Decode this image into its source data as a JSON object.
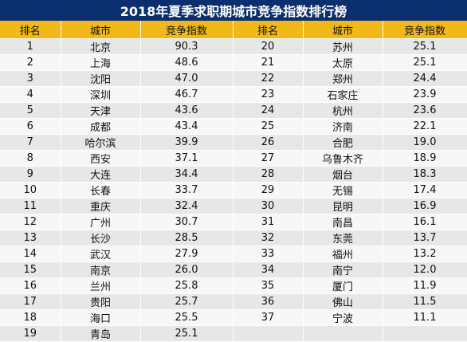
{
  "title": "2018年夏季求职期城市竞争指数排行榜",
  "headers": [
    "排名",
    "城市",
    "竞争指数",
    "排名",
    "城市",
    "竞争指数"
  ],
  "rows": [
    [
      "1",
      "北京",
      "90.3",
      "20",
      "苏州",
      "25.1"
    ],
    [
      "2",
      "上海",
      "48.6",
      "21",
      "太原",
      "25.1"
    ],
    [
      "3",
      "沈阳",
      "47.0",
      "22",
      "郑州",
      "24.4"
    ],
    [
      "4",
      "深圳",
      "46.7",
      "23",
      "石家庄",
      "23.9"
    ],
    [
      "5",
      "天津",
      "43.6",
      "24",
      "杭州",
      "23.6"
    ],
    [
      "6",
      "成都",
      "43.4",
      "25",
      "济南",
      "22.1"
    ],
    [
      "7",
      "哈尔滨",
      "39.9",
      "26",
      "合肥",
      "19.0"
    ],
    [
      "8",
      "西安",
      "37.1",
      "27",
      "乌鲁木齐",
      "18.9"
    ],
    [
      "9",
      "大连",
      "34.4",
      "28",
      "烟台",
      "18.3"
    ],
    [
      "10",
      "长春",
      "33.7",
      "29",
      "无锡",
      "17.4"
    ],
    [
      "11",
      "重庆",
      "32.4",
      "30",
      "昆明",
      "16.9"
    ],
    [
      "12",
      "广州",
      "30.7",
      "31",
      "南昌",
      "16.1"
    ],
    [
      "13",
      "长沙",
      "28.5",
      "32",
      "东莞",
      "13.7"
    ],
    [
      "14",
      "武汉",
      "27.9",
      "33",
      "福州",
      "13.2"
    ],
    [
      "15",
      "南京",
      "26.0",
      "34",
      "南宁",
      "12.0"
    ],
    [
      "16",
      "兰州",
      "25.8",
      "35",
      "厦门",
      "11.9"
    ],
    [
      "17",
      "贵阳",
      "25.7",
      "36",
      "佛山",
      "11.5"
    ],
    [
      "18",
      "海口",
      "25.5",
      "37",
      "宁波",
      "11.1"
    ],
    [
      "19",
      "青岛",
      "25.1",
      "",
      "",
      ""
    ]
  ],
  "colors": {
    "title_bg": "#0b2f6e",
    "header_bg": "#f2b817",
    "row_odd": "#e7e7e7",
    "row_even": "#f7f7f7"
  }
}
